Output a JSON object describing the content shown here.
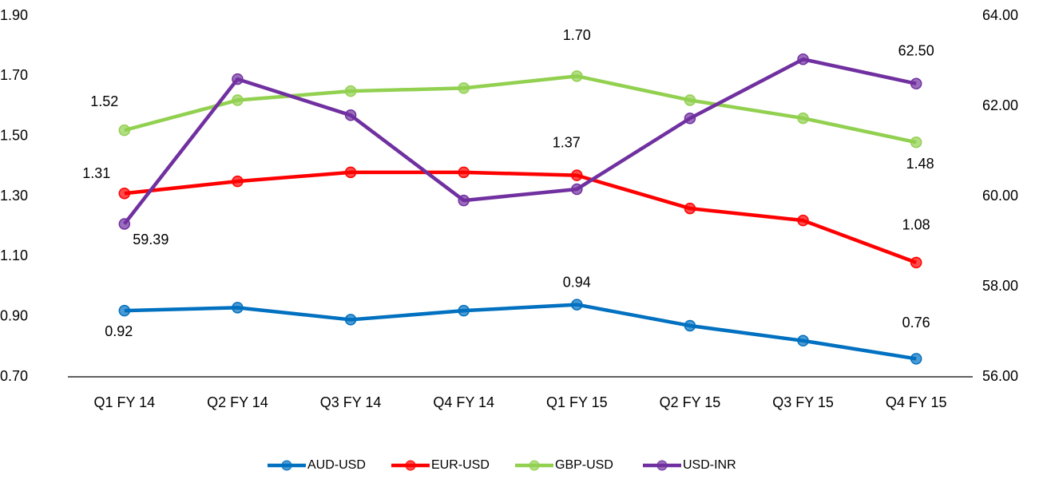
{
  "chart_data": {
    "type": "line",
    "categories": [
      "Q1 FY 14",
      "Q2 FY 14",
      "Q3 FY 14",
      "Q4 FY 14",
      "Q1 FY 15",
      "Q2 FY 15",
      "Q3 FY 15",
      "Q4 FY 15"
    ],
    "series": [
      {
        "name": "AUD-USD",
        "color": "#0070c0",
        "values": [
          0.92,
          0.93,
          0.89,
          0.92,
          0.94,
          0.87,
          0.82,
          0.76
        ],
        "value_labels": [
          "0.92",
          null,
          null,
          null,
          "0.94",
          null,
          null,
          "0.76"
        ]
      },
      {
        "name": "EUR-USD",
        "color": "#ff0000",
        "values": [
          1.31,
          1.35,
          1.38,
          1.38,
          1.37,
          1.26,
          1.22,
          1.08
        ],
        "value_labels": [
          "1.31",
          null,
          null,
          null,
          "1.37",
          null,
          null,
          "1.08"
        ]
      },
      {
        "name": "GBP-USD",
        "color": "#92d050",
        "values": [
          1.52,
          1.62,
          1.65,
          1.66,
          1.7,
          1.62,
          1.56,
          1.48
        ],
        "value_labels": [
          "1.52",
          null,
          null,
          null,
          "1.70",
          null,
          null,
          "1.48"
        ]
      },
      {
        "name": "USD-INR",
        "color": "#7030a0",
        "axis": "y2",
        "values": [
          59.39,
          62.6,
          61.8,
          59.91,
          60.16,
          61.73,
          63.04,
          62.5
        ],
        "value_labels": [
          "59.39",
          null,
          null,
          null,
          null,
          null,
          null,
          "62.50"
        ]
      }
    ],
    "ylim": [
      0.7,
      1.9
    ],
    "yticks": [
      {
        "value": 0.7,
        "label": "0.70"
      },
      {
        "value": 0.9,
        "label": "0.90"
      },
      {
        "value": 1.1,
        "label": "1.10"
      },
      {
        "value": 1.3,
        "label": "1.30"
      },
      {
        "value": 1.5,
        "label": "1.50"
      },
      {
        "value": 1.7,
        "label": "1.70"
      },
      {
        "value": 1.9,
        "label": "1.90"
      }
    ],
    "y2lim": [
      56,
      64
    ],
    "y2ticks": [
      {
        "value": 56,
        "label": "56.00"
      },
      {
        "value": 58,
        "label": "58.00"
      },
      {
        "value": 60,
        "label": "60.00"
      },
      {
        "value": 62,
        "label": "62.00"
      },
      {
        "value": 64,
        "label": "64.00"
      }
    ],
    "grid": false,
    "legend": "bottom"
  }
}
